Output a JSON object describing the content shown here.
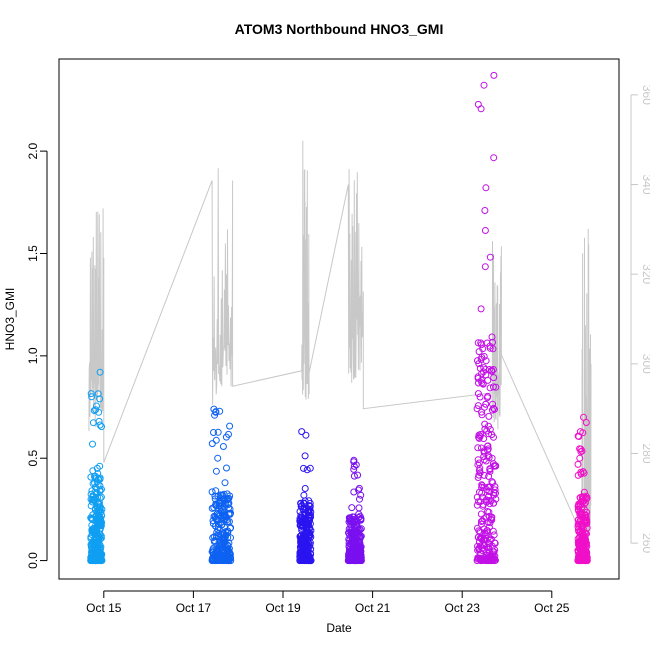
{
  "chart_data": {
    "type": "scatter",
    "title": "ATOM3 Northbound HNO3_GMI",
    "xlabel": "Date",
    "ylabel": "HNO3_GMI",
    "x_range": [
      "2017-10-14T00:00",
      "2017-10-26T12:00"
    ],
    "x_ticks": [
      {
        "date": "2017-10-15",
        "label": "Oct 15"
      },
      {
        "date": "2017-10-17",
        "label": "Oct 17"
      },
      {
        "date": "2017-10-19",
        "label": "Oct 19"
      },
      {
        "date": "2017-10-21",
        "label": "Oct 21"
      },
      {
        "date": "2017-10-23",
        "label": "Oct 23"
      },
      {
        "date": "2017-10-25",
        "label": "Oct 25"
      }
    ],
    "ylim": [
      -0.09,
      2.45
    ],
    "y_ticks": [
      0.0,
      0.5,
      1.0,
      1.5,
      2.0
    ],
    "y_tick_labels": [
      "0.0",
      "0.5",
      "1.0",
      "1.5",
      "2.0"
    ],
    "y2lim": [
      252,
      368
    ],
    "y2_ticks": [
      260,
      280,
      300,
      320,
      340,
      360
    ],
    "y2_color": "#c8c8c8",
    "grid": false,
    "legend": "none",
    "series": [
      {
        "color": "#0f9ef2",
        "x": [
          [
            "2017-10-14T17:00",
            0.0
          ],
          [
            "2017-10-14T18:00",
            0.15
          ],
          [
            "2017-10-14T19:00",
            0.3
          ],
          [
            "2017-10-14T20:30",
            0.45
          ],
          [
            "2017-10-14T21:30",
            0.68
          ],
          [
            "2017-10-14T22:00",
            0.92
          ],
          [
            "2017-10-14T23:00",
            0.25
          ]
        ]
      },
      {
        "color": "#0e62f2",
        "x": [
          [
            "2017-10-17T10:00",
            0.0
          ],
          [
            "2017-10-17T11:00",
            0.74
          ],
          [
            "2017-10-17T13:00",
            0.5
          ],
          [
            "2017-10-17T16:00",
            0.3
          ],
          [
            "2017-10-17T19:00",
            0.28
          ],
          [
            "2017-10-17T20:00",
            0.0
          ]
        ]
      },
      {
        "color": "#2a14f0",
        "x": [
          [
            "2017-10-19T09:00",
            0.0
          ],
          [
            "2017-10-19T10:00",
            0.63
          ],
          [
            "2017-10-19T11:00",
            0.45
          ],
          [
            "2017-10-19T14:00",
            0.22
          ],
          [
            "2017-10-19T15:00",
            0.0
          ]
        ]
      },
      {
        "color": "#7a10f0",
        "x": [
          [
            "2017-10-20T11:00",
            0.0
          ],
          [
            "2017-10-20T14:00",
            0.49
          ],
          [
            "2017-10-20T17:00",
            0.3
          ],
          [
            "2017-10-20T18:00",
            0.0
          ]
        ]
      },
      {
        "color": "#c210e6",
        "x": [
          [
            "2017-10-23T08:00",
            0.0
          ],
          [
            "2017-10-23T12:00",
            0.1
          ],
          [
            "2017-10-23T16:00",
            0.5
          ],
          [
            "2017-10-23T17:00",
            2.37
          ],
          [
            "2017-10-23T18:00",
            0.3
          ]
        ]
      },
      {
        "color": "#f010c8",
        "x": [
          [
            "2017-10-25T14:00",
            0.0
          ],
          [
            "2017-10-25T15:00",
            0.5
          ],
          [
            "2017-10-25T17:00",
            0.7
          ],
          [
            "2017-10-25T19:00",
            0.0
          ]
        ]
      }
    ]
  }
}
